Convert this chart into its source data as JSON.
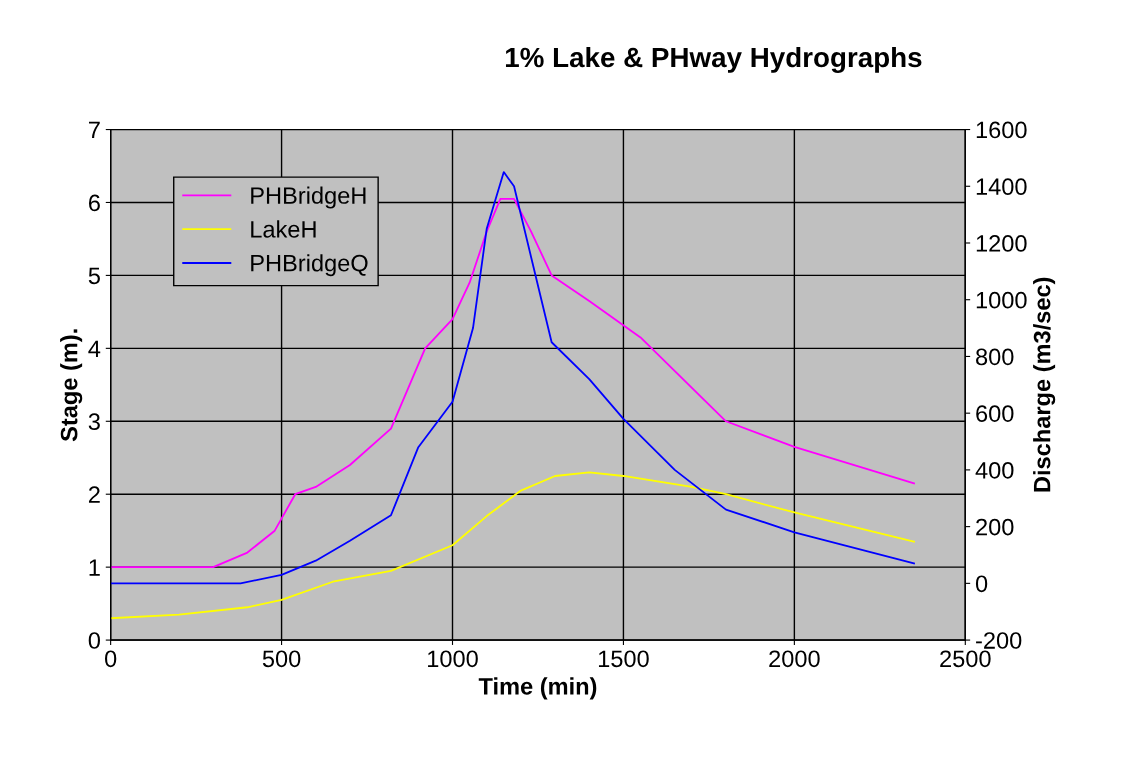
{
  "chart_data": {
    "type": "line",
    "title": "1% Lake & PHway Hydrographs",
    "xlabel": "Time (min)",
    "ylabel": "Stage (m).",
    "y2label": "Discharge (m3/sec)",
    "xlim": [
      0,
      2500
    ],
    "xticks": [
      0,
      500,
      1000,
      1500,
      2000,
      2500
    ],
    "ylim": [
      0,
      7
    ],
    "yticks": [
      0,
      1,
      2,
      3,
      4,
      5,
      6,
      7
    ],
    "y2lim": [
      -200,
      1600
    ],
    "y2ticks": [
      -200,
      0,
      200,
      400,
      600,
      800,
      1000,
      1200,
      1400,
      1600
    ],
    "grid": true,
    "legend": "top left",
    "marker": "none",
    "line_style": "solid",
    "series": [
      {
        "name": "PHBridgeH",
        "color": "#ff00ff",
        "x": [
          0,
          300,
          400,
          480,
          540,
          600,
          700,
          820,
          920,
          1000,
          1050,
          1100,
          1140,
          1180,
          1230,
          1290,
          1400,
          1550,
          1800,
          2000,
          2350
        ],
        "values": [
          1.0,
          1.0,
          1.2,
          1.5,
          2.0,
          2.1,
          2.4,
          2.9,
          4.0,
          4.4,
          4.9,
          5.6,
          6.05,
          6.05,
          5.6,
          5.0,
          4.65,
          4.15,
          3.0,
          2.65,
          2.15
        ]
      },
      {
        "name": "LakeH",
        "color": "#ffff00",
        "x": [
          0,
          200,
          400,
          500,
          650,
          820,
          1000,
          1100,
          1200,
          1300,
          1400,
          1500,
          1700,
          1800,
          2000,
          2350
        ],
        "values": [
          0.3,
          0.35,
          0.45,
          0.55,
          0.8,
          0.95,
          1.3,
          1.7,
          2.05,
          2.25,
          2.3,
          2.25,
          2.1,
          2.0,
          1.75,
          1.35
        ]
      },
      {
        "name": "PHBridgeQ",
        "color": "#0000ff",
        "axis": "y2",
        "x": [
          0,
          380,
          500,
          600,
          700,
          820,
          900,
          1000,
          1060,
          1100,
          1150,
          1180,
          1230,
          1290,
          1400,
          1500,
          1650,
          1800,
          2000,
          2350
        ],
        "values": [
          0,
          0,
          30,
          80,
          150,
          240,
          480,
          640,
          900,
          1250,
          1450,
          1400,
          1150,
          850,
          720,
          580,
          400,
          260,
          180,
          70
        ]
      }
    ]
  }
}
